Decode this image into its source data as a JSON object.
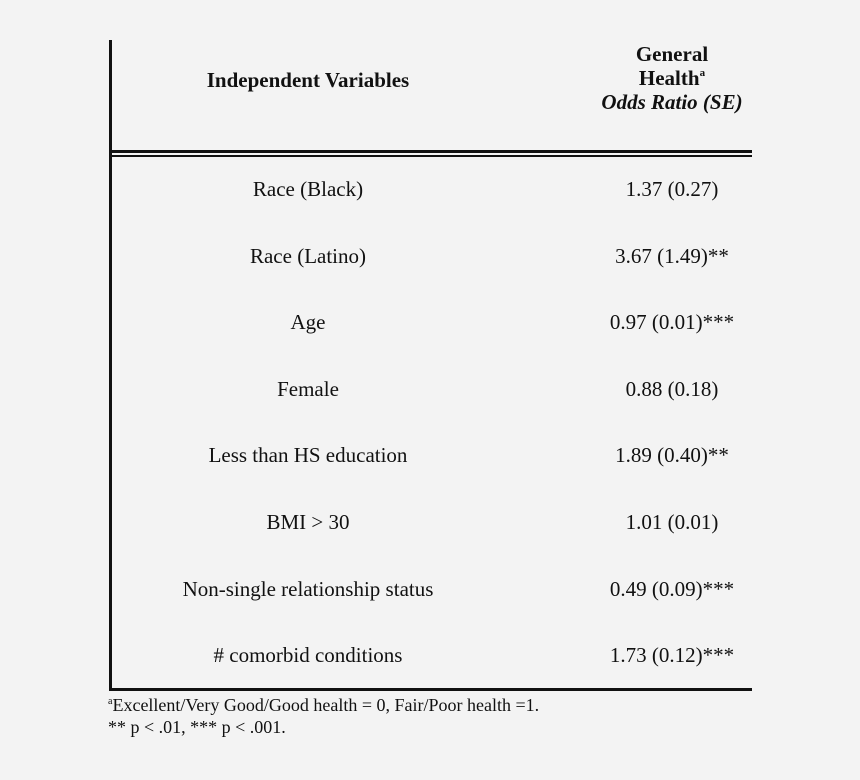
{
  "table": {
    "header": {
      "variables_label": "Independent Variables",
      "outcome_line1": "General",
      "outcome_line2": "Health",
      "outcome_superscript": "a",
      "outcome_line3": "Odds Ratio (SE)"
    },
    "rows": [
      {
        "variable": "Race (Black)",
        "odds_ratio": "1.37 (0.27)"
      },
      {
        "variable": "Race (Latino)",
        "odds_ratio": "3.67 (1.49)**"
      },
      {
        "variable": "Age",
        "odds_ratio": "0.97 (0.01)***"
      },
      {
        "variable": "Female",
        "odds_ratio": "0.88 (0.18)"
      },
      {
        "variable": "Less than HS education",
        "odds_ratio": "1.89 (0.40)**"
      },
      {
        "variable": "BMI > 30",
        "odds_ratio": "1.01 (0.01)"
      },
      {
        "variable": "Non-single relationship status",
        "odds_ratio": "0.49 (0.09)***"
      },
      {
        "variable": "# comorbid conditions",
        "odds_ratio": "1.73 (0.12)***"
      }
    ]
  },
  "notes": {
    "footnote_marker": "a",
    "footnote_text": "Excellent/Very Good/Good health = 0, Fair/Poor health =1.",
    "significance": "** p < .01, *** p < .001."
  }
}
